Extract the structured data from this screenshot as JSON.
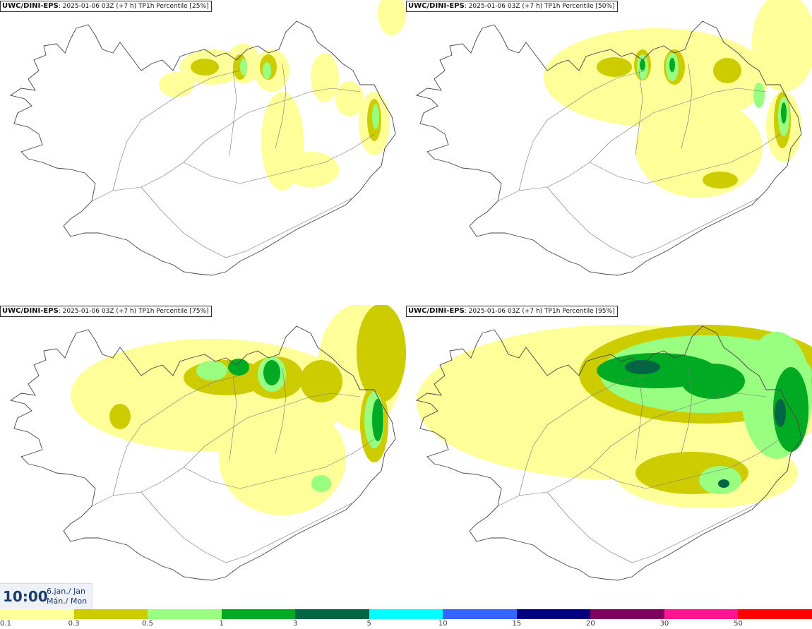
{
  "model": "UWC/DINI-EPS",
  "run_info": "2025-01-06 03Z (+7 h)",
  "variable": "TP1h Percentile",
  "panels": [
    {
      "label": "[25%]",
      "percentile": 25
    },
    {
      "label": "[50%]",
      "percentile": 50
    },
    {
      "label": "[75%]",
      "percentile": 75
    },
    {
      "label": "[95%]",
      "percentile": 95
    }
  ],
  "valid_time": {
    "time": "10:00",
    "date_line1": "6.jan./ Jan",
    "date_line2": "Mán./ Mon"
  },
  "legend": {
    "ticks": [
      "0.1",
      "0.3",
      "0.5",
      "1",
      "3",
      "5",
      "10",
      "15",
      "20",
      "30",
      "50"
    ],
    "colors": [
      "#ffff99",
      "#cccc00",
      "#99ff80",
      "#00aa22",
      "#006644",
      "#00ffff",
      "#3366ff",
      "#000080",
      "#800060",
      "#ff1493",
      "#ff0000"
    ]
  },
  "colors": {
    "light": "#ffff99",
    "olive": "#cccc00",
    "lightgreen": "#99ff80",
    "green": "#00aa22",
    "darkgreen": "#006644"
  }
}
